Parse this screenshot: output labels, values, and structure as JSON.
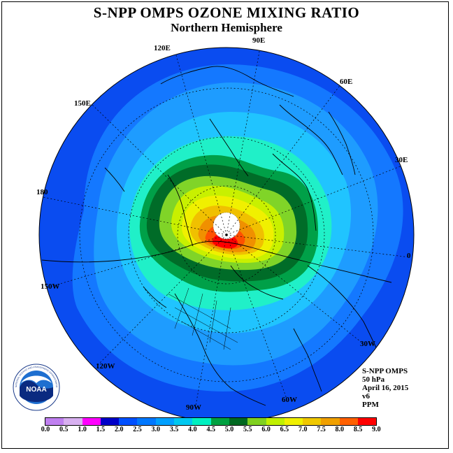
{
  "title": "S-NPP OMPS OZONE MIXING RATIO",
  "subtitle": "Northern Hemisphere",
  "longitude_labels": {
    "e90": "90E",
    "e120": "120E",
    "e60": "60E",
    "e150": "150E",
    "e30": "30E",
    "l180": "180",
    "l0": "0",
    "w150": "150W",
    "w30": "30W",
    "w120": "120W",
    "w60": "60W",
    "w90": "90W"
  },
  "info": {
    "instrument": "S-NPP OMPS",
    "level": "50 hPa",
    "date": "April 16, 2015",
    "version": "v6",
    "units": "PPM"
  },
  "logo": {
    "text": "NOAA",
    "ring_text": "NATIONAL OCEANIC AND ATMOSPHERIC ADMINISTRATION · U.S. DEPARTMENT OF COMMERCE"
  },
  "colorbar": {
    "labels": [
      "0.0",
      "0.5",
      "1.0",
      "1.5",
      "2.0",
      "2.5",
      "3.0",
      "3.5",
      "4.0",
      "4.5",
      "5.0",
      "5.5",
      "6.0",
      "6.5",
      "7.0",
      "7.5",
      "8.0",
      "8.5",
      "9.0"
    ],
    "colors": [
      "#c080f0",
      "#d8b0f0",
      "#ff00ff",
      "#0000c8",
      "#0050ff",
      "#0078ff",
      "#00a0ff",
      "#00c8f0",
      "#00f0c0",
      "#00a040",
      "#006820",
      "#80d020",
      "#c0f000",
      "#f0f000",
      "#f0c800",
      "#f0a000",
      "#ff6000",
      "#ff0000",
      "#a06040"
    ]
  },
  "map_colors": {
    "outer": "#0a4cf0",
    "band_2_5": "#1478ff",
    "band_3_0": "#1e9cff",
    "band_3_5": "#20c4ff",
    "band_4_0": "#20f0c8",
    "band_4_5": "#00a048",
    "band_5_0": "#006c28",
    "band_5_5": "#80d428",
    "band_6_0": "#c8f000",
    "band_6_5": "#f0f000",
    "band_7_0": "#f0c000",
    "band_7_5": "#f09000",
    "band_8_0": "#ff5000",
    "band_8_5": "#ff0000"
  }
}
